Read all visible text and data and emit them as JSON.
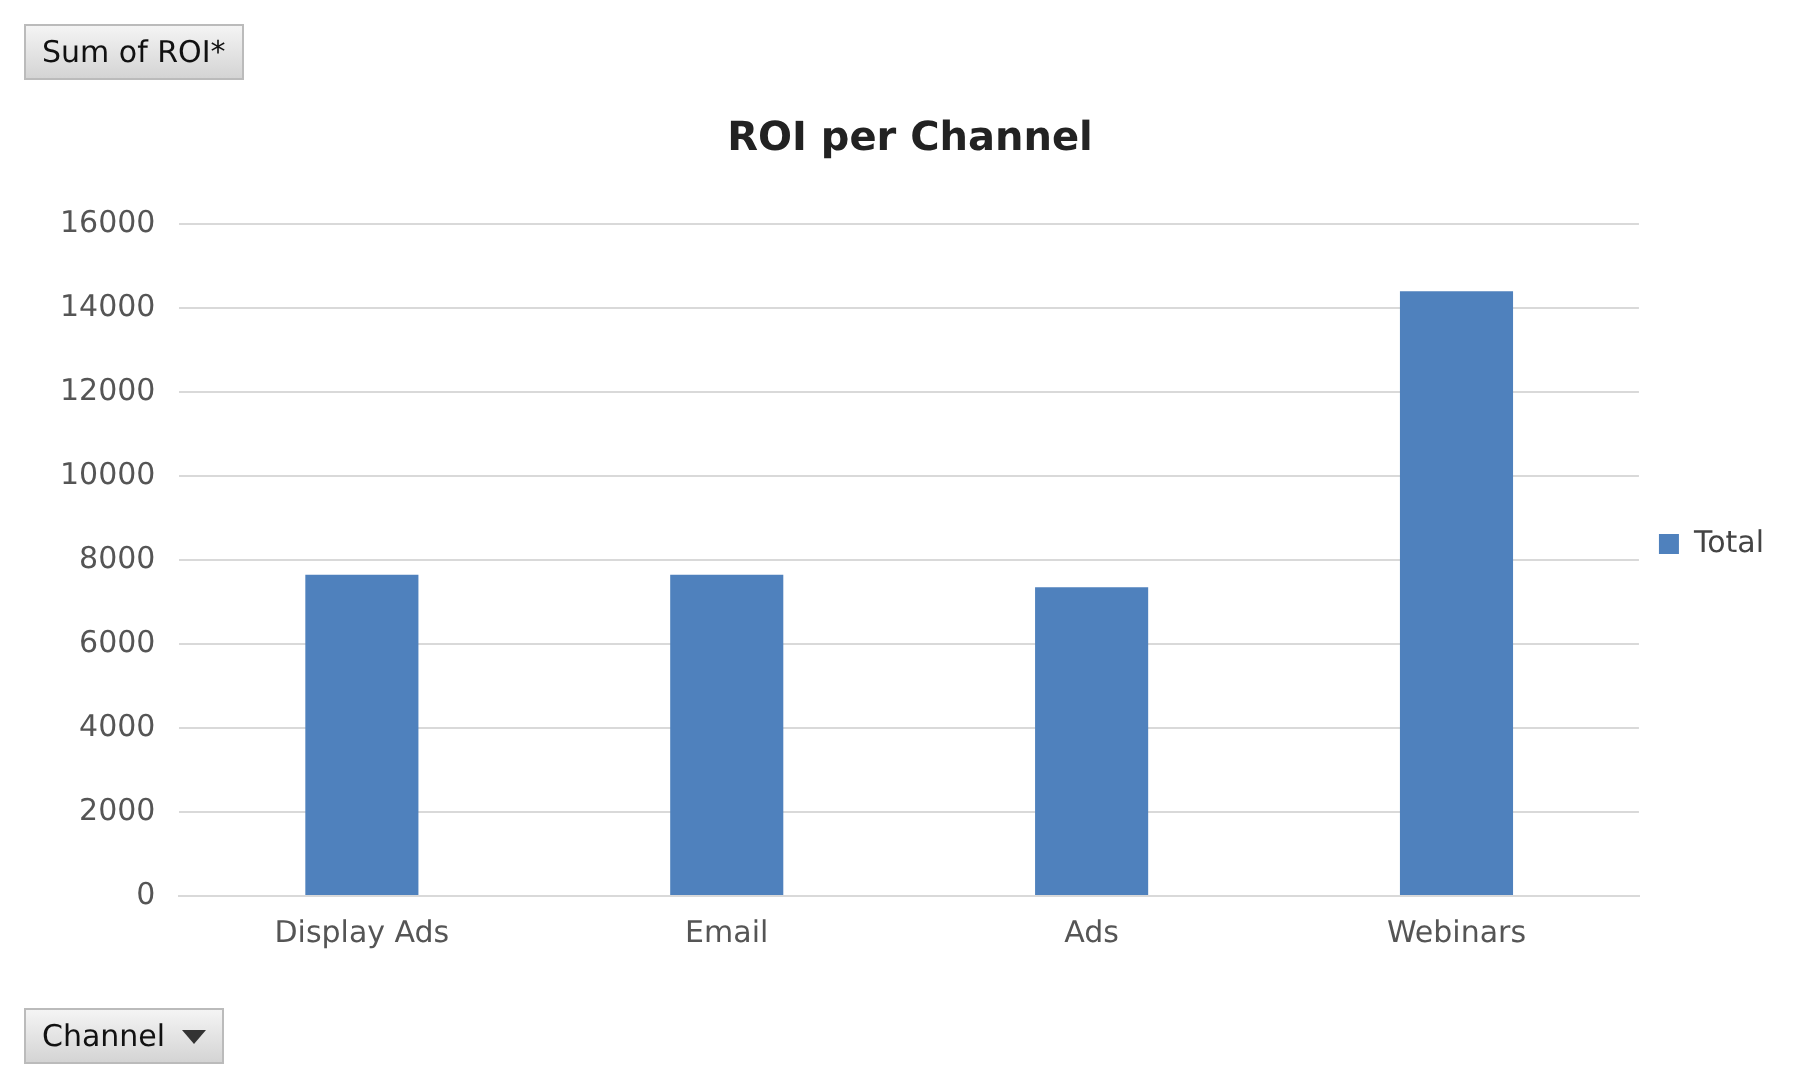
{
  "chart_data": {
    "type": "bar",
    "title": "ROI per Channel",
    "categories": [
      "Display Ads",
      "Email",
      "Ads",
      "Webinars"
    ],
    "series": [
      {
        "name": "Total",
        "color": "#4f81bd",
        "values": [
          7650,
          7650,
          7350,
          14400
        ]
      }
    ],
    "ylim": [
      0,
      16000
    ],
    "yticks": [
      0,
      2000,
      4000,
      6000,
      8000,
      10000,
      12000,
      14000,
      16000
    ],
    "grid": "y",
    "legend": "right",
    "annotations": [
      "Sum of ROI*",
      "Channel"
    ]
  }
}
